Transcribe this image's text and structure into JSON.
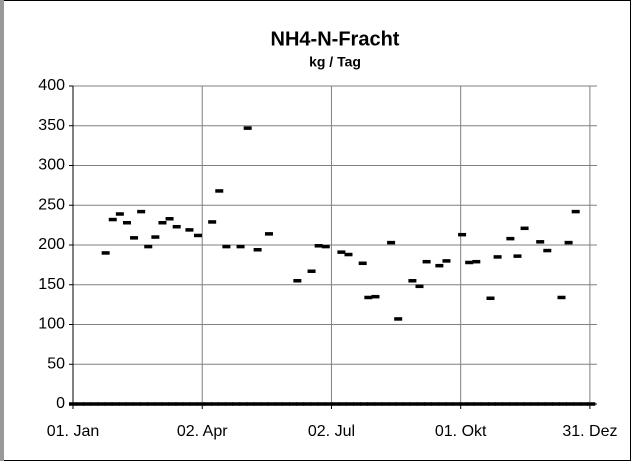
{
  "chart_data": {
    "type": "scatter",
    "title": "NH4-N-Fracht",
    "subtitle": "kg / Tag",
    "xlim": [
      0,
      369
    ],
    "ylim": [
      0,
      400
    ],
    "xticks": [
      {
        "value": 0,
        "label": "01. Jan"
      },
      {
        "value": 91,
        "label": "02. Apr"
      },
      {
        "value": 182,
        "label": "02. Jul"
      },
      {
        "value": 273,
        "label": "01. Okt"
      },
      {
        "value": 364,
        "label": "31. Dez"
      }
    ],
    "yticks": [
      0,
      50,
      100,
      150,
      200,
      250,
      300,
      350,
      400
    ],
    "grid": true,
    "series": [
      {
        "color": "#000000",
        "x": [
          23,
          28,
          33,
          38,
          43,
          48,
          53,
          58,
          63,
          68,
          73,
          82,
          88,
          98,
          103,
          108,
          118,
          123,
          130,
          138,
          158,
          168,
          173,
          178,
          189,
          194,
          204,
          208,
          213,
          224,
          229,
          239,
          244,
          249,
          258,
          263,
          274,
          279,
          284,
          294,
          299,
          308,
          313,
          318,
          329,
          334,
          344,
          349,
          354
        ],
        "values": [
          190,
          232,
          239,
          228,
          209,
          242,
          198,
          210,
          228,
          233,
          223,
          219,
          212,
          229,
          268,
          198,
          198,
          347,
          194,
          214,
          155,
          167,
          199,
          198,
          191,
          188,
          177,
          134,
          135,
          203,
          107,
          155,
          148,
          179,
          174,
          180,
          213,
          178,
          179,
          133,
          185,
          208,
          186,
          221,
          204,
          193,
          134,
          203,
          242
        ]
      },
      {
        "color": "#000000",
        "x": [
          0,
          5,
          10,
          15,
          20,
          25,
          30,
          35,
          40,
          45,
          50,
          55,
          60,
          65,
          70,
          75,
          80,
          85,
          90,
          95,
          100,
          105,
          110,
          115,
          120,
          125,
          130,
          135,
          140,
          145,
          150,
          155,
          160,
          165,
          170,
          175,
          180,
          185,
          190,
          195,
          200,
          205,
          210,
          215,
          220,
          225,
          230,
          235,
          240,
          245,
          250,
          255,
          260,
          265,
          270,
          275,
          280,
          285,
          290,
          295,
          300,
          305,
          310,
          315,
          320,
          325,
          330,
          335,
          340,
          345,
          350,
          355,
          360,
          365
        ],
        "values": [
          0,
          0,
          0,
          0,
          0,
          0,
          0,
          0,
          0,
          0,
          0,
          0,
          0,
          0,
          0,
          0,
          0,
          0,
          0,
          0,
          0,
          0,
          0,
          0,
          0,
          0,
          0,
          0,
          0,
          0,
          0,
          0,
          0,
          0,
          0,
          0,
          0,
          0,
          0,
          0,
          0,
          0,
          0,
          0,
          0,
          0,
          0,
          0,
          0,
          0,
          0,
          0,
          0,
          0,
          0,
          0,
          0,
          0,
          0,
          0,
          0,
          0,
          0,
          0,
          0,
          0,
          0,
          0,
          0,
          0,
          0,
          0,
          0,
          0
        ]
      }
    ]
  }
}
